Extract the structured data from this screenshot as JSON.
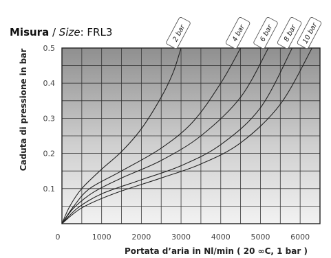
{
  "header": {
    "title_bold": "Misura",
    "title_sep": " / ",
    "title_italic": "Size",
    "title_rest": ": FRL3"
  },
  "chart_data": {
    "type": "line",
    "xlabel": "Portata d’aria in Nl/min ( 20 ∞C, 1 bar )",
    "ylabel": "Caduta di pressione in bar",
    "xlim": [
      0,
      6500
    ],
    "ylim": [
      0,
      0.5
    ],
    "x_ticks": [
      "0",
      "1000",
      "2000",
      "3000",
      "4000",
      "5000",
      "6000"
    ],
    "y_ticks": [
      "0.1",
      "0.2",
      "0.3",
      "0.4",
      "0.5"
    ],
    "grid": true,
    "series": [
      {
        "name": "2 bar",
        "color": "#222222",
        "points": [
          [
            0,
            0
          ],
          [
            200,
            0.05
          ],
          [
            500,
            0.1
          ],
          [
            1000,
            0.155
          ],
          [
            1500,
            0.205
          ],
          [
            2000,
            0.27
          ],
          [
            2500,
            0.36
          ],
          [
            2800,
            0.43
          ],
          [
            3000,
            0.5
          ]
        ]
      },
      {
        "name": "4 bar",
        "color": "#222222",
        "points": [
          [
            0,
            0
          ],
          [
            300,
            0.05
          ],
          [
            700,
            0.1
          ],
          [
            1500,
            0.15
          ],
          [
            2500,
            0.215
          ],
          [
            3300,
            0.29
          ],
          [
            4000,
            0.4
          ],
          [
            4500,
            0.5
          ]
        ]
      },
      {
        "name": "6 bar",
        "color": "#222222",
        "points": [
          [
            0,
            0
          ],
          [
            300,
            0.045
          ],
          [
            800,
            0.09
          ],
          [
            1500,
            0.13
          ],
          [
            2500,
            0.18
          ],
          [
            3500,
            0.25
          ],
          [
            4500,
            0.36
          ],
          [
            5200,
            0.5
          ]
        ]
      },
      {
        "name": "8 bar",
        "color": "#222222",
        "points": [
          [
            0,
            0
          ],
          [
            400,
            0.045
          ],
          [
            1000,
            0.085
          ],
          [
            2000,
            0.125
          ],
          [
            3000,
            0.165
          ],
          [
            4000,
            0.225
          ],
          [
            5000,
            0.33
          ],
          [
            5800,
            0.5
          ]
        ]
      },
      {
        "name": "10 bar",
        "color": "#222222",
        "points": [
          [
            0,
            0
          ],
          [
            500,
            0.045
          ],
          [
            1300,
            0.085
          ],
          [
            2500,
            0.13
          ],
          [
            3500,
            0.17
          ],
          [
            4500,
            0.23
          ],
          [
            5500,
            0.34
          ],
          [
            6300,
            0.5
          ]
        ]
      }
    ]
  }
}
